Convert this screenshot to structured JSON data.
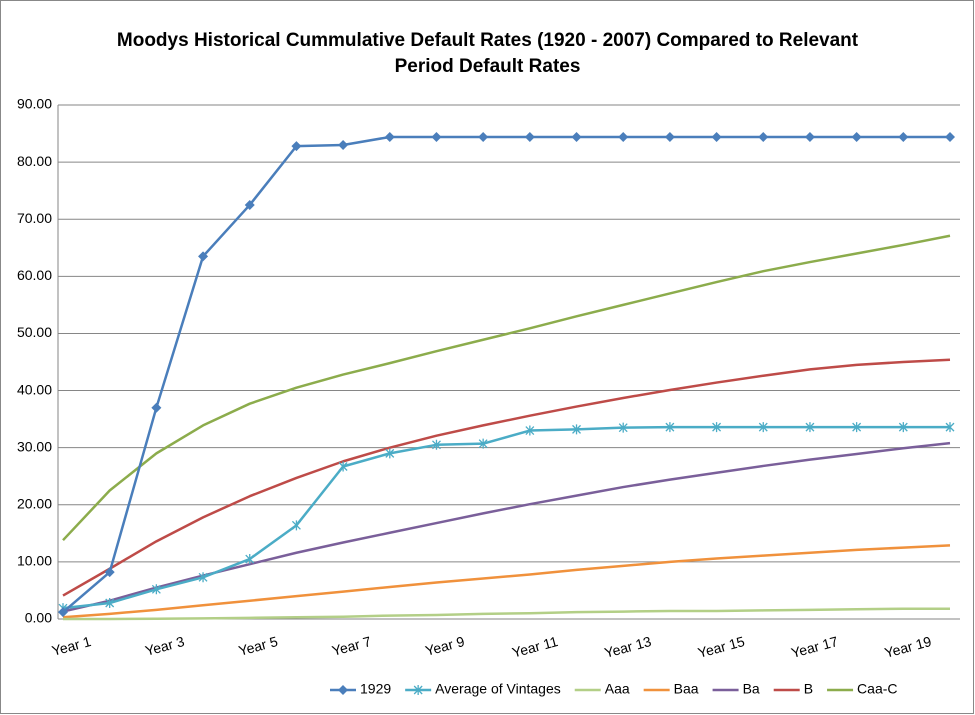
{
  "chart_data": {
    "type": "line",
    "title": "Moodys Historical Cummulative Default Rates (1920 - 2007) Compared to Relevant Period Default Rates",
    "categories": [
      "Year 1",
      null,
      "Year 3",
      null,
      "Year 5",
      null,
      "Year 7",
      null,
      "Year 9",
      null,
      "Year 11",
      null,
      "Year 13",
      null,
      "Year 15",
      null,
      "Year 17",
      null,
      "Year 19",
      null
    ],
    "series": [
      {
        "name": "1929",
        "color": "#4a7ebb",
        "marker": "diamond",
        "values": [
          1.2,
          8.2,
          37.0,
          63.5,
          72.5,
          82.8,
          83.0,
          84.4,
          84.4,
          84.4,
          84.4,
          84.4,
          84.4,
          84.4,
          84.4,
          84.4,
          84.4,
          84.4,
          84.4,
          84.4
        ]
      },
      {
        "name": "Average of Vintages",
        "color": "#4bacc6",
        "marker": "asterisk",
        "values": [
          1.9,
          2.8,
          5.2,
          7.3,
          10.5,
          16.4,
          26.7,
          29.0,
          30.5,
          30.7,
          33.0,
          33.2,
          33.5,
          33.6,
          33.6,
          33.6,
          33.6,
          33.6,
          33.6,
          33.6
        ]
      },
      {
        "name": "Aaa",
        "color": "#b3cf87",
        "values": [
          0,
          0,
          0.05,
          0.1,
          0.2,
          0.3,
          0.4,
          0.6,
          0.7,
          0.9,
          1.0,
          1.2,
          1.3,
          1.4,
          1.4,
          1.5,
          1.6,
          1.7,
          1.8,
          1.8
        ]
      },
      {
        "name": "Baa",
        "color": "#f0913c",
        "values": [
          0.3,
          0.9,
          1.6,
          2.4,
          3.2,
          4.0,
          4.8,
          5.6,
          6.4,
          7.1,
          7.8,
          8.6,
          9.3,
          10.0,
          10.6,
          11.1,
          11.6,
          12.1,
          12.5,
          12.9
        ]
      },
      {
        "name": "Ba",
        "color": "#7a5f9a",
        "values": [
          1.3,
          3.2,
          5.5,
          7.6,
          9.6,
          11.6,
          13.4,
          15.1,
          16.8,
          18.5,
          20.1,
          21.6,
          23.1,
          24.4,
          25.6,
          26.8,
          27.9,
          28.9,
          29.9,
          30.8
        ]
      },
      {
        "name": "B",
        "color": "#be4b48",
        "values": [
          4.1,
          8.8,
          13.6,
          17.8,
          21.5,
          24.7,
          27.6,
          30.0,
          32.1,
          33.9,
          35.6,
          37.2,
          38.7,
          40.1,
          41.4,
          42.6,
          43.7,
          44.5,
          45.0,
          45.4
        ]
      },
      {
        "name": "Caa-C",
        "color": "#8cac4c",
        "values": [
          13.8,
          22.5,
          29.0,
          33.9,
          37.7,
          40.5,
          42.8,
          44.8,
          46.9,
          48.9,
          50.9,
          53.0,
          55.0,
          57.0,
          59.0,
          60.9,
          62.5,
          64.0,
          65.5,
          67.1
        ]
      }
    ],
    "ylim": [
      0,
      90
    ],
    "yticks": [
      {
        "value": 0,
        "label": "0.00"
      },
      {
        "value": 10,
        "label": "10.00"
      },
      {
        "value": 20,
        "label": "20.00"
      },
      {
        "value": 30,
        "label": "30.00"
      },
      {
        "value": 40,
        "label": "40.00"
      },
      {
        "value": 50,
        "label": "50.00"
      },
      {
        "value": 60,
        "label": "60.00"
      },
      {
        "value": 70,
        "label": "70.00"
      },
      {
        "value": 80,
        "label": "80.00"
      },
      {
        "value": 90,
        "label": "90.00"
      }
    ],
    "grid": true,
    "legend": "bottom"
  }
}
